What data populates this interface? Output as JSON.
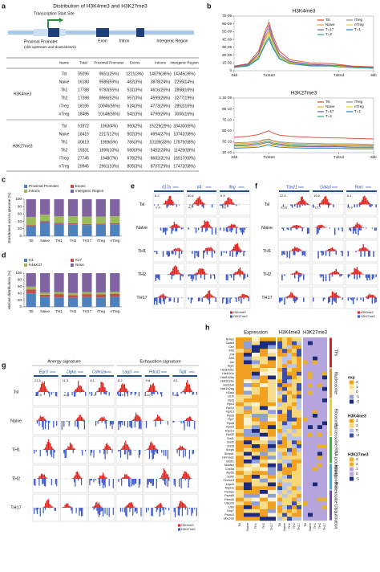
{
  "panel_labels": [
    "a",
    "b",
    "c",
    "d",
    "e",
    "f",
    "g",
    "h"
  ],
  "panel_a": {
    "title": "Distribution of H3K4me3 and H3K27me3",
    "diagram": {
      "tss": "Transcription Start Site",
      "promoter": "Proximal Promoter",
      "promoter_note": "(1kb upstream and downstream)",
      "exon": "Exon",
      "intron": "Intron",
      "intergenic": "Intergenic Region"
    },
    "table": {
      "header": [
        "Name",
        "Total",
        "Proximal Promoter",
        "Exons",
        "Introns",
        "Intergenic Region"
      ],
      "groups": [
        {
          "name": "H3K4me3",
          "highlight_color": "#d7261e",
          "rows": [
            [
              "Tsl",
              "39296",
              "9651(25%)",
              "1221(3%)",
              "14079(36%)",
              "14345(36%)"
            ],
            [
              "Naive",
              "16180",
              "9585(59%)",
              "462(3%)",
              "3878(24%)",
              "2255(14%)"
            ],
            [
              "Th1",
              "17788",
              "9783(55%)",
              "531(3%)",
              "4616(26%)",
              "2858(16%)"
            ],
            [
              "Th2",
              "17398",
              "8966(52%)",
              "557(3%)",
              "4599(26%)",
              "3277(19%)"
            ],
            [
              "iTreg",
              "18195",
              "10046(55%)",
              "524(3%)",
              "4773(26%)",
              "2852(16%)"
            ],
            [
              "nTreg",
              "18495",
              "10148(55%)",
              "542(3%)",
              "4799(26%)",
              "3006(16%)"
            ]
          ]
        },
        {
          "name": "H3K27me3",
          "highlight_color": "#1f4fd6",
          "rows": [
            [
              "Tsl",
              "51572",
              "1963(4%)",
              "950(2%)",
              "15229(29%)",
              "33430(65%)"
            ],
            [
              "Naive",
              "18415",
              "2217(12%)",
              "502(3%)",
              "4954(27%)",
              "10742(58%)"
            ],
            [
              "Th1",
              "30619",
              "1969(6%)",
              "766(3%)",
              "10109(33%)",
              "17875(58%)"
            ],
            [
              "Th2",
              "19331",
              "1890(10%)",
              "560(3%)",
              "5452(28%)",
              "11429(59%)"
            ],
            [
              "iTreg",
              "27745",
              "1948(7%)",
              "678(2%)",
              "8602(31%)",
              "16517(60%)"
            ],
            [
              "nTreg",
              "29945",
              "2961(10%)",
              "805(3%)",
              "8707(29%)",
              "17472(58%)"
            ]
          ]
        }
      ]
    }
  },
  "chart_data": [
    {
      "type": "line",
      "title": "H3K4me3",
      "legend": "upper right",
      "x": [
        0,
        4,
        7,
        9,
        10,
        11,
        13,
        16,
        22,
        28,
        30,
        34,
        40
      ],
      "xlim": [
        0,
        40
      ],
      "xticks": [
        {
          "value": 0,
          "label": "-5kb"
        },
        {
          "value": 10,
          "label": "TxStart"
        },
        {
          "value": 30,
          "label": "TxEnd"
        },
        {
          "value": 40,
          "label": "5kb"
        }
      ],
      "ylim": [
        0,
        7e-09
      ],
      "yticks": [
        0,
        {
          "value": 1e-09,
          "label": "1E-09"
        },
        {
          "value": 2e-09,
          "label": "2E-09"
        },
        {
          "value": 3e-09,
          "label": "3E-09"
        },
        {
          "value": 4e-09,
          "label": "4E-09"
        },
        {
          "value": 5e-09,
          "label": "5E-09"
        },
        {
          "value": 6e-09,
          "label": "6E-09"
        },
        {
          "value": 7e-09,
          "label": "7E-09"
        }
      ],
      "series": [
        {
          "name": "Tsl",
          "color": "#e0442a",
          "values": [
            6e-10,
            9e-10,
            2.5e-09,
            5.2e-09,
            6.2e-09,
            4.6e-09,
            2.5e-09,
            1.4e-09,
            1e-09,
            9e-10,
            8e-10,
            6e-10,
            5e-10
          ]
        },
        {
          "name": "iTreg",
          "color": "#8c8c8c",
          "values": [
            5e-10,
            8e-10,
            2e-09,
            4.4e-09,
            5.4e-09,
            3.9e-09,
            1.9e-09,
            1.1e-09,
            8e-10,
            7e-10,
            6e-10,
            5e-10,
            4e-10
          ]
        },
        {
          "name": "Naive",
          "color": "#f0a030",
          "values": [
            5e-10,
            7e-10,
            1.8e-09,
            4.2e-09,
            5e-09,
            3.6e-09,
            1.8e-09,
            1e-09,
            7e-10,
            6e-10,
            6e-10,
            5e-10,
            4e-10
          ]
        },
        {
          "name": "nTreg",
          "color": "#e8d020",
          "values": [
            5e-10,
            7e-10,
            1.9e-09,
            4e-09,
            4.8e-09,
            3.5e-09,
            1.8e-09,
            1e-09,
            7e-10,
            6e-10,
            6e-10,
            5e-10,
            4e-10
          ]
        },
        {
          "name": "T=17",
          "color": "#7b4fa8",
          "values": [
            5e-10,
            8e-10,
            2.2e-09,
            4.8e-09,
            5.8e-09,
            4.2e-09,
            2.1e-09,
            1.2e-09,
            8e-10,
            7e-10,
            7e-10,
            5e-10,
            4e-10
          ]
        },
        {
          "name": "T=1",
          "color": "#2a7fd4",
          "values": [
            4e-10,
            6e-10,
            1.5e-09,
            3.4e-09,
            4.1e-09,
            3e-09,
            1.5e-09,
            9e-10,
            6e-10,
            6e-10,
            5e-10,
            4e-10,
            3e-10
          ]
        },
        {
          "name": "T=2",
          "color": "#35a860",
          "values": [
            4e-10,
            7e-10,
            1.6e-09,
            3.6e-09,
            4.4e-09,
            3.2e-09,
            1.6e-09,
            9e-10,
            7e-10,
            6e-10,
            5e-10,
            4e-10,
            4e-10
          ]
        }
      ]
    },
    {
      "type": "line",
      "title": "H3K27me3",
      "legend": "upper right",
      "x": [
        0,
        4,
        7,
        9,
        10,
        11,
        13,
        16,
        22,
        28,
        30,
        34,
        40
      ],
      "xlim": [
        0,
        40
      ],
      "xticks": [
        {
          "value": 0,
          "label": "-5kb"
        },
        {
          "value": 10,
          "label": "TxStart"
        },
        {
          "value": 30,
          "label": "TxEnd"
        },
        {
          "value": 40,
          "label": "5kb"
        }
      ],
      "ylim": [
        1e-10,
        1.1e-09
      ],
      "yticks": [
        {
          "value": 1e-10,
          "label": "1E-10"
        },
        {
          "value": 3e-10,
          "label": "3E-10"
        },
        {
          "value": 5e-10,
          "label": "5E-10"
        },
        {
          "value": 7e-10,
          "label": "7E-10"
        },
        {
          "value": 9e-10,
          "label": "9E-10"
        },
        {
          "value": 1.1e-09,
          "label": "1.1E-09"
        }
      ],
      "series": [
        {
          "name": "Tsl",
          "color": "#e0442a",
          "values": [
            3.8e-10,
            4e-10,
            4.3e-10,
            4.8e-10,
            5e-10,
            4.6e-10,
            4.2e-10,
            4e-10,
            3.8e-10,
            3.7e-10,
            3.7e-10,
            3.6e-10,
            3.5e-10
          ]
        },
        {
          "name": "iTreg",
          "color": "#8c8c8c",
          "values": [
            2.8e-10,
            2.9e-10,
            3.1e-10,
            3.4e-10,
            3.5e-10,
            3.2e-10,
            3e-10,
            2.8e-10,
            2.7e-10,
            2.6e-10,
            2.6e-10,
            2.6e-10,
            2.5e-10
          ]
        },
        {
          "name": "Naive",
          "color": "#f0a030",
          "values": [
            2.6e-10,
            2.7e-10,
            2.9e-10,
            3.3e-10,
            3.4e-10,
            3.1e-10,
            2.8e-10,
            2.6e-10,
            2.5e-10,
            2.4e-10,
            2.4e-10,
            2.4e-10,
            2.3e-10
          ]
        },
        {
          "name": "nTreg",
          "color": "#e8d020",
          "values": [
            2e-10,
            2.1e-10,
            2.2e-10,
            2.5e-10,
            2.6e-10,
            2.4e-10,
            2.2e-10,
            2.1e-10,
            2e-10,
            1.9e-10,
            1.9e-10,
            1.9e-10,
            1.9e-10
          ]
        },
        {
          "name": "T=17",
          "color": "#7b4fa8",
          "values": [
            2.2e-10,
            2.3e-10,
            2.5e-10,
            2.8e-10,
            2.9e-10,
            2.6e-10,
            2.4e-10,
            2.2e-10,
            2.1e-10,
            2.1e-10,
            2.1e-10,
            2e-10,
            2e-10
          ]
        },
        {
          "name": "T=1",
          "color": "#2a7fd4",
          "values": [
            1.8e-10,
            1.9e-10,
            2e-10,
            2.3e-10,
            2.4e-10,
            2.2e-10,
            2e-10,
            1.9e-10,
            1.8e-10,
            1.8e-10,
            1.8e-10,
            1.7e-10,
            1.7e-10
          ]
        },
        {
          "name": "T=2",
          "color": "#35a860",
          "values": [
            2.4e-10,
            2.5e-10,
            2.7e-10,
            3e-10,
            3.1e-10,
            2.8e-10,
            2.6e-10,
            2.4e-10,
            2.3e-10,
            2.3e-10,
            2.2e-10,
            2.2e-10,
            2.2e-10
          ]
        }
      ]
    },
    {
      "type": "stacked_bar",
      "ylabel": "Enrichment across genome (%)",
      "legend": "top",
      "categories": [
        "Tsl",
        "Naive",
        "TH1",
        "TH2",
        "TH17",
        "iTreg",
        "nTreg"
      ],
      "ylim": [
        0,
        100
      ],
      "yticks": [
        0,
        20,
        40,
        60,
        80,
        100
      ],
      "series": [
        {
          "name": "Proximal Promoter",
          "color": "#4f81bd",
          "values": [
            27,
            38,
            33,
            32,
            30,
            31,
            32
          ]
        },
        {
          "name": "Exons",
          "color": "#c0504d",
          "values": [
            3,
            3,
            3,
            3,
            3,
            3,
            3
          ]
        },
        {
          "name": "Introns",
          "color": "#9bbb59",
          "values": [
            22,
            17,
            18,
            19,
            20,
            19,
            19
          ]
        },
        {
          "name": "Intergenic Region",
          "color": "#8064a2",
          "values": [
            48,
            42,
            46,
            46,
            47,
            47,
            46
          ]
        }
      ]
    },
    {
      "type": "stacked_bar",
      "ylabel": "Histone distributions (%)",
      "legend": "top",
      "categories": [
        "Tsl",
        "Naive",
        "TH1",
        "TH2",
        "TH17",
        "iTreg",
        "nTreg"
      ],
      "ylim": [
        0,
        100
      ],
      "yticks": [
        0,
        20,
        40,
        60,
        80,
        100
      ],
      "series": [
        {
          "name": "K4",
          "color": "#4f81bd",
          "values": [
            40,
            30,
            28,
            27,
            29,
            28,
            30
          ]
        },
        {
          "name": "K27",
          "color": "#c0504d",
          "values": [
            12,
            6,
            10,
            8,
            9,
            9,
            9
          ]
        },
        {
          "name": "K4&K27",
          "color": "#9bbb59",
          "values": [
            8,
            6,
            6,
            6,
            6,
            6,
            6
          ]
        },
        {
          "name": "None",
          "color": "#8064a2",
          "values": [
            40,
            58,
            56,
            59,
            56,
            57,
            55
          ]
        }
      ]
    }
  ],
  "panel_e": {
    "genes": [
      "Il17a",
      "Il4",
      "Ifng"
    ],
    "rows": [
      "Tsl",
      "Naive",
      "TH1",
      "TH2",
      "TH17"
    ],
    "pos_scales": [
      "5.2",
      "50.6",
      "6.9"
    ],
    "neg_scales": [
      "-7.4",
      "-4.7",
      "-3.8"
    ],
    "legend": [
      "H3K4me3",
      "H3K27me3"
    ]
  },
  "panel_f": {
    "genes": [
      "Tbx21",
      "Gata3",
      "Rorc"
    ],
    "rows": [
      "Tsl",
      "Naive",
      "TH1",
      "TH2",
      "TH17"
    ],
    "pos_scales": [
      "22.5",
      "19.6",
      "6.1"
    ],
    "neg_scales": [
      "-15.6",
      "-13.7",
      "-9.0"
    ],
    "legend": [
      "H3K4me3",
      "H3K27me3"
    ]
  },
  "panel_g": {
    "signatures": [
      "Anergy signature",
      "Exhaustion signature"
    ],
    "genes": [
      "Egr3",
      "Dgka",
      "Cdkn2a",
      "Lag3",
      "Pdcd1",
      "Tigit"
    ],
    "rows": [
      "Tsl",
      "Naive",
      "TH1",
      "TH2",
      "TH17"
    ],
    "pos_scales": [
      "21.5",
      "11.3",
      "8.1",
      "8.2",
      "9.8",
      "8.1"
    ],
    "neg_scales": [
      "-15.5",
      "-11.2",
      "-7.3",
      "-8.9",
      "-10.1",
      "-6.6"
    ],
    "legend": [
      "H3K4me3",
      "H3K27me3"
    ]
  },
  "panel_h": {
    "blocks": [
      "Expression",
      "H3K4me3",
      "H3K27me3"
    ],
    "columns": [
      "Tsl",
      "Naive",
      "TH1",
      "TH2",
      "TH17"
    ],
    "groups": [
      {
        "name": "TFs",
        "color": "#e02020",
        "genes": [
          "Nr4a1",
          "Gata3",
          "Ctcf",
          "Klf3",
          "Irf4",
          "Atf4",
          "Jun",
          "Egr1"
        ]
      },
      {
        "name": "Nucleosome",
        "color": "#f08c1a",
        "genes": [
          "Hist1h2bc",
          "Hist1h1c",
          "Hist1h2bk",
          "Hist2h2be",
          "Hist1h4i",
          "Hist1h2ag",
          "H2afz",
          "H1f0"
        ]
      },
      {
        "name": "Ribosome",
        "color": "#f2d21a",
        "genes": [
          "Rpl3",
          "Rps3",
          "Rpl10",
          "Rpl13",
          "Rps6",
          "Rpl7",
          "Rps8",
          "Rpl18",
          "Rps14",
          "Rpl32"
        ]
      },
      {
        "name": "Spliceosome RNA processing",
        "color": "#2fbf3a",
        "genes": [
          "Srsf1",
          "Srsf2",
          "Srsf3",
          "Snrpb",
          "Snrpd1",
          "Hnrnpa1",
          "Sf3b1"
        ]
      },
      {
        "name": "Mitochondria",
        "color": "#27b7d6",
        "genes": [
          "Ndufa4",
          "Cox5a",
          "Atp5b",
          "Sdhb",
          "Timm13",
          "Uqcrh",
          "Mrpl11"
        ]
      },
      {
        "name": "Proteasome Ubiquitination",
        "color": "#7a3fb0",
        "genes": [
          "Psma1",
          "Psmb5",
          "Psmd4",
          "Ube2l3",
          "Ubb",
          "Usp7",
          "Psmc3",
          "Ube2d3"
        ]
      }
    ],
    "legend": [
      {
        "title": "exp",
        "values": [
          2,
          1,
          0,
          -1,
          -2
        ]
      },
      {
        "title": "H3K4me3",
        "values": [
          4,
          2,
          0,
          -2
        ]
      },
      {
        "title": "H3K27me3",
        "values": [
          3,
          2,
          1,
          0,
          -1
        ]
      }
    ]
  }
}
